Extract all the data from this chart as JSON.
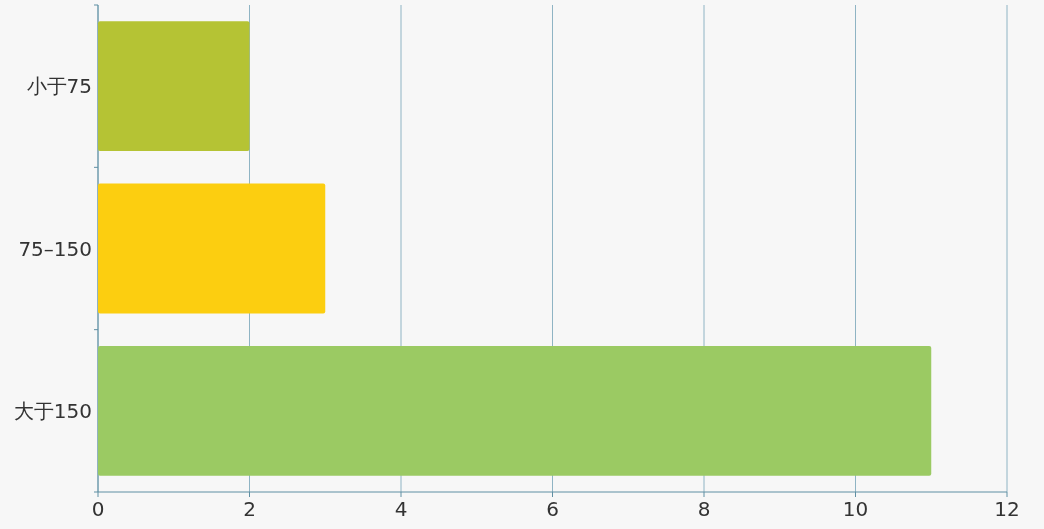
{
  "chart_data": {
    "type": "bar",
    "orientation": "horizontal",
    "categories": [
      "小于75",
      "75–150",
      "大于150"
    ],
    "values": [
      2,
      3,
      11
    ],
    "colors": [
      "#b5c334",
      "#fcce10",
      "#9bca63"
    ],
    "xlim": [
      0,
      12
    ],
    "xticks": [
      0,
      2,
      4,
      6,
      8,
      10,
      12
    ],
    "grid": "x"
  }
}
